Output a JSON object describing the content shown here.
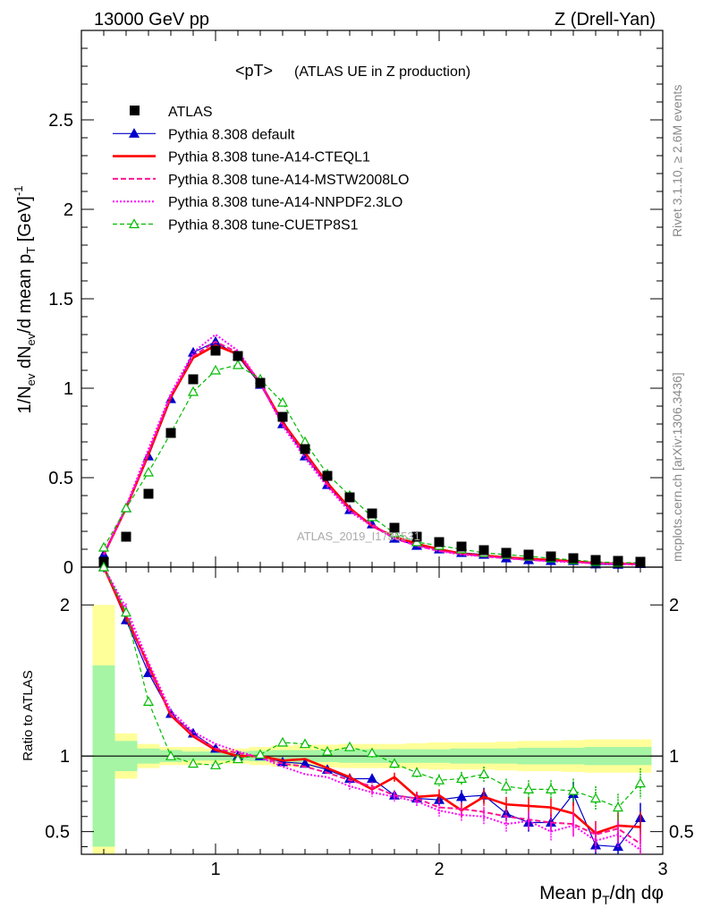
{
  "header": {
    "left": "13000 GeV pp",
    "right": "Z (Drell-Yan)",
    "title_main": "<pT>",
    "title_sub": "(ATLAS UE in Z production)"
  },
  "side": {
    "rivet": "Rivet 3.1.10, ≥ 2.6M events",
    "mcplots": "mcplots.cern.ch [arXiv:1306.3436]"
  },
  "watermark": "ATLAS_2019_I1736531",
  "chart_data": {
    "type": "scatter",
    "main": {
      "ylabel": "1/N_ev dN_ev/d mean p_T [GeV]^-1",
      "xlim": [
        0.4,
        3.0
      ],
      "ylim": [
        0,
        3.0
      ],
      "yticks": [
        0,
        0.5,
        1,
        1.5,
        2,
        2.5
      ],
      "ytick_labels": [
        "0",
        "0.5",
        "1",
        "1.5",
        "2",
        "2.5"
      ]
    },
    "ratio": {
      "ylabel": "Ratio to ATLAS",
      "ylim": [
        0.35,
        2.25
      ],
      "yticks": [
        0.5,
        1,
        2
      ],
      "ytick_labels": [
        "0.5",
        "1",
        "2"
      ]
    },
    "xlabel": "Mean p_T/dη dφ",
    "xticks": [
      1,
      2,
      3
    ],
    "xtick_labels": [
      "1",
      "2",
      "3"
    ],
    "x": [
      0.5,
      0.6,
      0.7,
      0.8,
      0.9,
      1.0,
      1.1,
      1.2,
      1.3,
      1.4,
      1.5,
      1.6,
      1.7,
      1.8,
      1.9,
      2.0,
      2.1,
      2.2,
      2.3,
      2.4,
      2.5,
      2.6,
      2.7,
      2.8,
      2.9
    ],
    "data": {
      "name": "ATLAS",
      "values": [
        0.03,
        0.17,
        0.41,
        0.75,
        1.05,
        1.21,
        1.18,
        1.03,
        0.84,
        0.66,
        0.51,
        0.39,
        0.3,
        0.22,
        0.17,
        0.14,
        0.115,
        0.095,
        0.08,
        0.07,
        0.06,
        0.05,
        0.04,
        0.035,
        0.03
      ]
    },
    "bands": {
      "x_edges": [
        0.45,
        0.55,
        0.65,
        0.75,
        0.85,
        0.95,
        1.05,
        1.15,
        1.25,
        1.35,
        1.45,
        1.55,
        1.65,
        1.75,
        1.85,
        1.95,
        2.05,
        2.15,
        2.25,
        2.35,
        2.45,
        2.55,
        2.65,
        2.75,
        2.85,
        2.95
      ],
      "stat": [
        0.6,
        0.1,
        0.05,
        0.04,
        0.03,
        0.03,
        0.03,
        0.035,
        0.04,
        0.04,
        0.04,
        0.045,
        0.045,
        0.045,
        0.045,
        0.045,
        0.05,
        0.05,
        0.05,
        0.055,
        0.055,
        0.055,
        0.06,
        0.06,
        0.06
      ],
      "total": [
        1.0,
        0.15,
        0.08,
        0.06,
        0.06,
        0.05,
        0.05,
        0.06,
        0.07,
        0.075,
        0.075,
        0.08,
        0.08,
        0.08,
        0.085,
        0.09,
        0.09,
        0.09,
        0.095,
        0.1,
        0.1,
        0.105,
        0.11,
        0.11,
        0.11
      ],
      "stat_color": "#a5f5a5",
      "total_color": "#ffff99"
    },
    "series": [
      {
        "name": "Pythia 8.308 default",
        "color": "#0000cc",
        "dash": "none",
        "marker": "triangle-filled",
        "width": 1.2,
        "values": [
          0.07,
          0.33,
          0.62,
          0.94,
          1.2,
          1.26,
          1.18,
          1.02,
          0.8,
          0.62,
          0.46,
          0.32,
          0.24,
          0.16,
          0.12,
          0.1,
          0.08,
          0.07,
          0.05,
          0.04,
          0.035,
          0.035,
          0.016,
          0.014,
          0.018
        ],
        "ratio": [
          2.3,
          1.9,
          1.55,
          1.28,
          1.15,
          1.05,
          1.0,
          1.0,
          0.96,
          0.95,
          0.91,
          0.85,
          0.85,
          0.74,
          0.72,
          0.71,
          0.73,
          0.74,
          0.62,
          0.56,
          0.56,
          0.75,
          0.41,
          0.4,
          0.59
        ],
        "ratio_err": [
          0.05,
          0.03,
          0.02,
          0.02,
          0.015,
          0.015,
          0.015,
          0.015,
          0.02,
          0.02,
          0.02,
          0.025,
          0.03,
          0.03,
          0.035,
          0.04,
          0.045,
          0.05,
          0.05,
          0.06,
          0.06,
          0.08,
          0.08,
          0.09,
          0.1
        ]
      },
      {
        "name": "Pythia 8.308 tune-A14-CTEQL1",
        "color": "#ff0000",
        "dash": "none",
        "marker": "none",
        "width": 2.6,
        "values": [
          0.07,
          0.33,
          0.63,
          0.95,
          1.17,
          1.24,
          1.19,
          1.03,
          0.81,
          0.64,
          0.47,
          0.33,
          0.23,
          0.17,
          0.13,
          0.1,
          0.075,
          0.065,
          0.054,
          0.046,
          0.04,
          0.033,
          0.022,
          0.02,
          0.017
        ],
        "ratio": [
          2.3,
          1.92,
          1.6,
          1.27,
          1.13,
          1.04,
          1.0,
          1.0,
          0.97,
          0.98,
          0.92,
          0.86,
          0.78,
          0.86,
          0.73,
          0.74,
          0.64,
          0.73,
          0.68,
          0.67,
          0.66,
          0.62,
          0.49,
          0.54,
          0.53
        ],
        "ratio_err": [
          0.05,
          0.03,
          0.02,
          0.02,
          0.015,
          0.015,
          0.015,
          0.015,
          0.02,
          0.02,
          0.02,
          0.025,
          0.03,
          0.03,
          0.035,
          0.04,
          0.045,
          0.05,
          0.05,
          0.06,
          0.06,
          0.08,
          0.08,
          0.09,
          0.1
        ]
      },
      {
        "name": "Pythia 8.308 tune-A14-MSTW2008LO",
        "color": "#ff1493",
        "dash": "6,3",
        "marker": "none",
        "width": 2.0,
        "values": [
          0.07,
          0.33,
          0.64,
          0.96,
          1.18,
          1.26,
          1.2,
          1.03,
          0.8,
          0.63,
          0.46,
          0.32,
          0.24,
          0.16,
          0.12,
          0.09,
          0.075,
          0.06,
          0.05,
          0.04,
          0.034,
          0.03,
          0.02,
          0.02,
          0.017
        ],
        "ratio": [
          2.32,
          1.95,
          1.58,
          1.28,
          1.14,
          1.05,
          1.02,
          0.99,
          0.95,
          0.93,
          0.89,
          0.84,
          0.8,
          0.74,
          0.72,
          0.66,
          0.65,
          0.63,
          0.6,
          0.58,
          0.56,
          0.55,
          0.48,
          0.52,
          0.42
        ],
        "ratio_err": [
          0.05,
          0.03,
          0.02,
          0.02,
          0.015,
          0.015,
          0.015,
          0.015,
          0.02,
          0.02,
          0.02,
          0.025,
          0.03,
          0.03,
          0.035,
          0.04,
          0.045,
          0.05,
          0.05,
          0.06,
          0.06,
          0.08,
          0.08,
          0.09,
          0.1
        ]
      },
      {
        "name": "Pythia 8.308 tune-A14-NNPDF2.3LO",
        "color": "#ff00ff",
        "dash": "2,2",
        "marker": "none",
        "width": 2.0,
        "values": [
          0.07,
          0.34,
          0.66,
          0.97,
          1.2,
          1.3,
          1.21,
          1.03,
          0.79,
          0.61,
          0.45,
          0.31,
          0.23,
          0.16,
          0.12,
          0.09,
          0.07,
          0.06,
          0.05,
          0.04,
          0.033,
          0.028,
          0.02,
          0.018,
          0.012
        ],
        "ratio": [
          2.35,
          1.98,
          1.62,
          1.3,
          1.16,
          1.08,
          1.03,
          0.99,
          0.93,
          0.88,
          0.86,
          0.8,
          0.76,
          0.73,
          0.7,
          0.64,
          0.61,
          0.6,
          0.55,
          0.57,
          0.5,
          0.54,
          0.44,
          0.48,
          0.38
        ],
        "ratio_err": [
          0.05,
          0.03,
          0.02,
          0.02,
          0.015,
          0.015,
          0.015,
          0.015,
          0.02,
          0.02,
          0.02,
          0.025,
          0.03,
          0.03,
          0.035,
          0.04,
          0.045,
          0.05,
          0.05,
          0.06,
          0.06,
          0.08,
          0.08,
          0.09,
          0.1
        ]
      },
      {
        "name": "Pythia 8.308 tune-CUETP8S1",
        "color": "#00bb00",
        "dash": "5,3",
        "marker": "triangle-open",
        "width": 1.2,
        "values": [
          0.11,
          0.33,
          0.53,
          0.75,
          0.98,
          1.1,
          1.13,
          1.05,
          0.92,
          0.7,
          0.52,
          0.4,
          0.28,
          0.19,
          0.14,
          0.12,
          0.1,
          0.08,
          0.07,
          0.06,
          0.05,
          0.04,
          0.03,
          0.025,
          0.025
        ],
        "ratio": [
          2.4,
          1.95,
          1.36,
          1.0,
          0.95,
          0.94,
          0.98,
          1.01,
          1.09,
          1.08,
          1.03,
          1.06,
          1.02,
          0.95,
          0.89,
          0.84,
          0.85,
          0.88,
          0.8,
          0.78,
          0.78,
          0.77,
          0.72,
          0.66,
          0.82
        ],
        "ratio_err": [
          0.05,
          0.03,
          0.02,
          0.02,
          0.015,
          0.015,
          0.015,
          0.015,
          0.02,
          0.02,
          0.02,
          0.025,
          0.03,
          0.03,
          0.035,
          0.04,
          0.045,
          0.05,
          0.05,
          0.06,
          0.06,
          0.08,
          0.08,
          0.09,
          0.1
        ]
      }
    ]
  }
}
